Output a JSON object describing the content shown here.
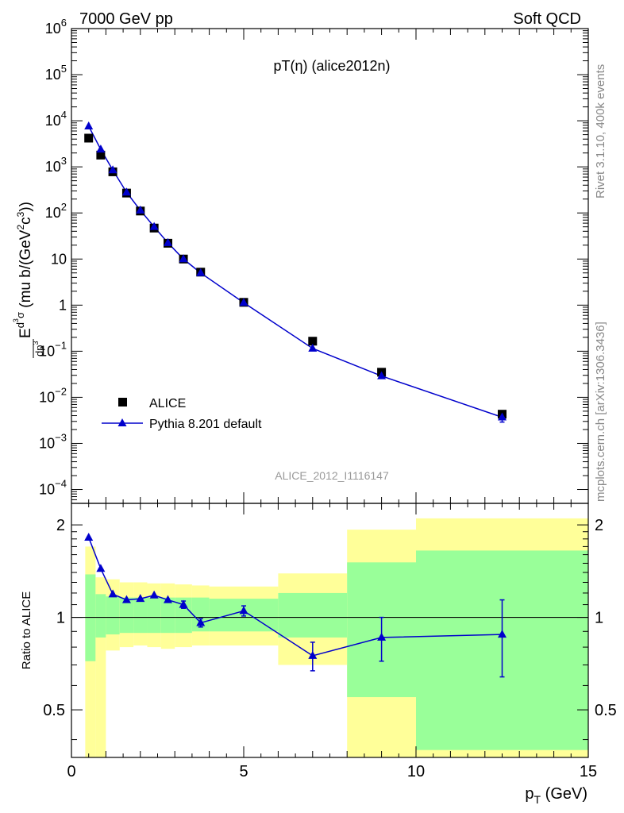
{
  "header": {
    "left": "7000 GeV pp",
    "right": "Soft QCD"
  },
  "side_labels": {
    "rivet": "Rivet 3.1.10,  400k events",
    "mcplots": "mcplots.cern.ch [arXiv:1306.3436]"
  },
  "colors": {
    "mc": "#0000cc",
    "data": "#000000",
    "band_outer": "#ffff99",
    "band_inner": "#99ff99"
  },
  "chart_data": [
    {
      "type": "scatter",
      "title": "pT(η) (alice2012n)",
      "watermark": "ALICE_2012_I1116147",
      "ylabel_main": "E d³σ / dp³ (mu b/(GeV²c³))",
      "yscale": "log",
      "xlim": [
        0,
        15
      ],
      "ylim": [
        5e-05,
        1000000
      ],
      "y_ticks": [
        {
          "v": 1000000,
          "m": "10",
          "e": "6"
        },
        {
          "v": 100000,
          "m": "10",
          "e": "5"
        },
        {
          "v": 10000,
          "m": "10",
          "e": "4"
        },
        {
          "v": 1000,
          "m": "10",
          "e": "3"
        },
        {
          "v": 100,
          "m": "10",
          "e": "2"
        },
        {
          "v": 10,
          "m": "10",
          "e": ""
        },
        {
          "v": 1,
          "m": "1",
          "e": ""
        },
        {
          "v": 0.1,
          "m": "10",
          "e": "−1"
        },
        {
          "v": 0.01,
          "m": "10",
          "e": "−2"
        },
        {
          "v": 0.001,
          "m": "10",
          "e": "−3"
        },
        {
          "v": 0.0001,
          "m": "10",
          "e": "−4"
        }
      ],
      "legend": {
        "position": "lower-left",
        "entries": [
          "ALICE",
          "Pythia 8.201 default"
        ]
      },
      "series": [
        {
          "name": "ALICE",
          "marker": "square",
          "x": [
            0.5,
            0.85,
            1.2,
            1.6,
            2.0,
            2.4,
            2.8,
            3.25,
            3.75,
            5.0,
            7.0,
            9.0,
            12.5
          ],
          "y": [
            4200,
            1800,
            780,
            270,
            110,
            47,
            22,
            10,
            5.2,
            1.15,
            0.165,
            0.035,
            0.0043
          ]
        },
        {
          "name": "Pythia 8.201 default",
          "marker": "triangle",
          "x": [
            0.5,
            0.85,
            1.2,
            1.6,
            2.0,
            2.4,
            2.8,
            3.25,
            3.75,
            5.0,
            7.0,
            9.0,
            12.5
          ],
          "y": [
            7600,
            2400,
            850,
            280,
            114,
            50,
            22.5,
            10,
            5.0,
            1.13,
            0.115,
            0.029,
            0.0037
          ],
          "yerr_low": [
            0,
            0,
            0,
            0,
            0,
            0,
            0,
            0,
            0,
            0,
            0,
            0,
            0.0008
          ],
          "yerr_high": [
            0,
            0,
            0,
            0,
            0,
            0,
            0,
            0,
            0,
            0,
            0,
            0,
            0.0008
          ]
        }
      ]
    },
    {
      "type": "line",
      "ylabel": "Ratio to ALICE",
      "xlabel": "p_T (GeV)",
      "xlabel_main": "p",
      "xlabel_sub": "T",
      "xlabel_unit": "(GeV)",
      "xlim": [
        0,
        15
      ],
      "ylim": [
        0.35,
        2.35
      ],
      "yscale": "log",
      "x_ticks": [
        0,
        5,
        10,
        15
      ],
      "y_ticks": [
        0.5,
        1,
        2
      ],
      "reference_line": 1,
      "bands": {
        "edges": [
          0.4,
          0.7,
          1.0,
          1.4,
          1.8,
          2.2,
          2.6,
          3.0,
          3.5,
          4.0,
          6.0,
          8.0,
          10.0,
          15.0
        ],
        "outer_low": [
          0.35,
          0.35,
          0.78,
          0.8,
          0.81,
          0.8,
          0.79,
          0.8,
          0.81,
          0.81,
          0.7,
          0.35,
          0.35
        ],
        "outer_high": [
          1.7,
          1.35,
          1.33,
          1.3,
          1.3,
          1.29,
          1.29,
          1.28,
          1.27,
          1.26,
          1.39,
          1.93,
          2.1
        ],
        "inner_low": [
          0.72,
          0.86,
          0.88,
          0.89,
          0.89,
          0.89,
          0.89,
          0.89,
          0.9,
          0.9,
          0.86,
          0.55,
          0.37
        ],
        "inner_high": [
          1.38,
          1.19,
          1.17,
          1.16,
          1.16,
          1.16,
          1.16,
          1.16,
          1.16,
          1.15,
          1.2,
          1.51,
          1.65
        ]
      },
      "series": [
        {
          "name": "Pythia 8.201 default",
          "x": [
            0.5,
            0.85,
            1.2,
            1.6,
            2.0,
            2.4,
            2.8,
            3.25,
            3.75,
            5.0,
            7.0,
            9.0,
            12.5
          ],
          "y": [
            1.82,
            1.44,
            1.19,
            1.14,
            1.15,
            1.18,
            1.14,
            1.1,
            0.96,
            1.05,
            0.75,
            0.86,
            0.88
          ],
          "yerr_low": [
            0,
            0,
            0,
            0,
            0,
            0,
            0,
            0.03,
            0.03,
            0.04,
            0.08,
            0.14,
            0.24
          ],
          "yerr_high": [
            0,
            0,
            0,
            0,
            0,
            0,
            0,
            0.03,
            0.03,
            0.04,
            0.08,
            0.14,
            0.26
          ]
        }
      ]
    }
  ]
}
